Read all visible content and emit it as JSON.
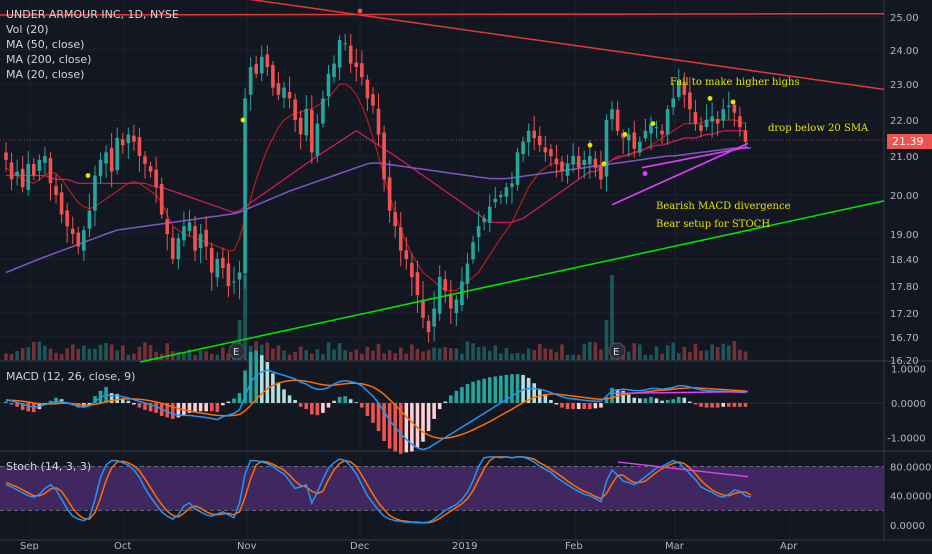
{
  "header": {
    "title": "UNDER ARMOUR INC, 1D, NYSE",
    "indicators": [
      "Vol (20)",
      "MA (50, close)",
      "MA (200, close)",
      "MA (20, close)"
    ]
  },
  "price_badge": "21.39",
  "macd_title": "MACD (12, 26, close, 9)",
  "stoch_title": "Stoch (14, 3, 3)",
  "colors": {
    "background": "#131722",
    "up": "#26a69a",
    "down": "#ef5350",
    "ma50": "#d81b60",
    "ma200": "#7e57c2",
    "ma20": "#b71c1c",
    "resistance": "#e53935",
    "support": "#00e600",
    "divergence": "#e040fb",
    "annotation": "#e6e600",
    "macd_line": "#2196f3",
    "signal_line": "#ff6d00",
    "stoch_band": "#4a2a6a"
  },
  "chart_data": [
    {
      "type": "candlestick",
      "title": "UNDER ARMOUR INC, 1D, NYSE",
      "x_ticks": [
        "Sep",
        "Oct",
        "Nov",
        "Dec",
        "2019",
        "Feb",
        "Mar",
        "Apr"
      ],
      "y_ticks": [
        25.0,
        24.0,
        23.0,
        22.0,
        21.0,
        20.0,
        19.0,
        18.4,
        17.8,
        17.2,
        16.7,
        16.2
      ],
      "y_scale": "log",
      "ylim": [
        16.2,
        25.3
      ],
      "last_price": 21.39,
      "overlays": [
        "Vol (20)",
        "MA (50, close)",
        "MA (200, close)",
        "MA (20, close)"
      ],
      "annotations": [
        "Fail to make higher highs",
        "drop below 20 SMA",
        "Bearish MACD divergence",
        "Bear setup for STOCH"
      ],
      "earnings_markers": [
        "E",
        "E"
      ],
      "closes": [
        20.9,
        20.4,
        20.6,
        20.2,
        20.8,
        20.5,
        20.9,
        21.0,
        20.3,
        20.0,
        19.5,
        19.2,
        19.0,
        18.7,
        19.1,
        19.6,
        20.5,
        20.9,
        21.1,
        20.6,
        21.5,
        21.3,
        21.6,
        21.4,
        21.0,
        20.8,
        20.6,
        20.2,
        19.5,
        19.0,
        18.4,
        18.9,
        19.2,
        19.3,
        18.6,
        19.0,
        18.7,
        18.1,
        18.4,
        18.2,
        17.8,
        17.9,
        18.1,
        22.6,
        23.5,
        23.3,
        23.8,
        23.5,
        22.9,
        22.7,
        22.9,
        22.6,
        22.0,
        21.6,
        22.3,
        21.1,
        21.9,
        22.6,
        23.3,
        23.6,
        24.3,
        24.2,
        23.6,
        23.5,
        23.2,
        22.6,
        22.4,
        21.6,
        20.4,
        19.6,
        19.2,
        18.6,
        18.4,
        18.0,
        17.6,
        17.1,
        16.8,
        17.3,
        18.0,
        17.7,
        17.3,
        17.5,
        17.9,
        18.3,
        18.8,
        19.2,
        19.4,
        19.7,
        19.9,
        20.0,
        20.2,
        20.3,
        21.1,
        21.4,
        21.7,
        21.5,
        21.3,
        21.1,
        21.0,
        20.8,
        20.6,
        20.8,
        21.0,
        20.7,
        20.9,
        21.0,
        20.7,
        20.4,
        22.0,
        22.3,
        21.7,
        21.5,
        21.6,
        21.2,
        21.4,
        21.7,
        21.9,
        21.8,
        21.6,
        22.3,
        22.6,
        23.1,
        22.7,
        22.3,
        21.9,
        21.7,
        22.0,
        22.1,
        21.9,
        22.3,
        22.4,
        22.2,
        21.8,
        21.39
      ],
      "series": [
        {
          "name": "MA (20, close)",
          "values": [
            20.7,
            20.6,
            20.5,
            20.4,
            20.35,
            20.3,
            20.4,
            20.5,
            20.6,
            20.55,
            20.4,
            20.2,
            20.0,
            19.8,
            19.7,
            19.65,
            19.7,
            19.8,
            19.9,
            20.0,
            20.1,
            20.2,
            20.3,
            20.35,
            20.3,
            20.2,
            20.1,
            20.0,
            19.8,
            19.5,
            19.2,
            19.1,
            19.0,
            18.95,
            18.9,
            18.85,
            18.8,
            18.75,
            18.7,
            18.65,
            18.6,
            18.6,
            18.9,
            19.4,
            19.9,
            20.4,
            20.8,
            21.2,
            21.5,
            21.8,
            22.0,
            22.1,
            22.2,
            22.2,
            22.3,
            22.3,
            22.4,
            22.5,
            22.6,
            22.8,
            23.0,
            23.0,
            22.9,
            22.7,
            22.4,
            22.0,
            21.5,
            21.0,
            20.5,
            20.0,
            19.5,
            19.1,
            18.8,
            18.5,
            18.3,
            18.1,
            18.0,
            17.9,
            17.8,
            17.7,
            17.7,
            17.7,
            17.8,
            17.9,
            18.0,
            18.1,
            18.3,
            18.5,
            18.7,
            18.9,
            19.1,
            19.3,
            19.6,
            19.9,
            20.2,
            20.4,
            20.6,
            20.7,
            20.8,
            20.8,
            20.8,
            20.8,
            20.8,
            20.8,
            20.8,
            20.8,
            20.7,
            20.7,
            20.8,
            20.9,
            21.0,
            21.0,
            21.0,
            21.1,
            21.1,
            21.2,
            21.3,
            21.4,
            21.5,
            21.6,
            21.7,
            21.8,
            21.9,
            21.9,
            21.9,
            21.9,
            22.0,
            22.0,
            22.0,
            22.0,
            22.0,
            22.0,
            21.95,
            21.9
          ]
        },
        {
          "name": "MA (50, close)",
          "values": [
            20.5,
            20.5,
            20.5,
            20.5,
            20.5,
            20.5,
            20.5,
            20.5,
            20.45,
            20.4,
            20.4,
            20.4,
            20.35,
            20.3,
            20.3,
            20.3,
            20.3,
            20.3,
            20.3,
            20.3,
            20.3,
            20.3,
            20.3,
            20.3,
            20.3,
            20.3,
            20.25,
            20.2,
            20.2,
            20.15,
            20.1,
            20.05,
            20.0,
            19.95,
            19.9,
            19.85,
            19.8,
            19.75,
            19.7,
            19.65,
            19.6,
            19.55,
            19.6,
            19.7,
            19.8,
            19.9,
            20.0,
            20.1,
            20.2,
            20.3,
            20.4,
            20.5,
            20.6,
            20.7,
            20.8,
            20.9,
            21.0,
            21.1,
            21.2,
            21.3,
            21.4,
            21.5,
            21.6,
            21.7,
            21.6,
            21.5,
            21.4,
            21.3,
            21.2,
            21.1,
            21.0,
            20.9,
            20.8,
            20.7,
            20.6,
            20.5,
            20.4,
            20.3,
            20.2,
            20.1,
            20.0,
            19.9,
            19.8,
            19.7,
            19.6,
            19.5,
            19.4,
            19.3,
            19.3,
            19.3,
            19.3,
            19.3,
            19.35,
            19.4,
            19.5,
            19.6,
            19.7,
            19.8,
            19.9,
            20.0,
            20.1,
            20.2,
            20.3,
            20.4,
            20.5,
            20.6,
            20.6,
            20.7,
            20.8,
            20.9,
            20.95,
            21.0,
            21.05,
            21.1,
            21.15,
            21.2,
            21.25,
            21.3,
            21.3,
            21.35,
            21.4,
            21.45,
            21.5,
            21.5,
            21.5,
            21.55,
            21.6,
            21.6,
            21.65,
            21.7,
            21.7,
            21.7,
            21.7,
            21.7
          ]
        },
        {
          "name": "MA (200, close)",
          "values": [
            18.1,
            18.15,
            18.2,
            18.25,
            18.3,
            18.35,
            18.4,
            18.45,
            18.5,
            18.55,
            18.6,
            18.65,
            18.7,
            18.75,
            18.8,
            18.85,
            18.9,
            18.95,
            19.0,
            19.05,
            19.1,
            19.12,
            19.14,
            19.16,
            19.18,
            19.2,
            19.22,
            19.24,
            19.26,
            19.28,
            19.3,
            19.32,
            19.34,
            19.36,
            19.38,
            19.4,
            19.42,
            19.44,
            19.46,
            19.48,
            19.5,
            19.52,
            19.56,
            19.62,
            19.68,
            19.74,
            19.8,
            19.86,
            19.92,
            19.98,
            20.04,
            20.1,
            20.15,
            20.2,
            20.25,
            20.3,
            20.35,
            20.4,
            20.45,
            20.5,
            20.55,
            20.6,
            20.65,
            20.7,
            20.75,
            20.8,
            20.82,
            20.82,
            20.8,
            20.78,
            20.76,
            20.74,
            20.72,
            20.7,
            20.68,
            20.66,
            20.64,
            20.62,
            20.6,
            20.58,
            20.56,
            20.54,
            20.52,
            20.5,
            20.48,
            20.46,
            20.44,
            20.42,
            20.42,
            20.42,
            20.42,
            20.44,
            20.46,
            20.48,
            20.5,
            20.52,
            20.54,
            20.56,
            20.58,
            20.6,
            20.62,
            20.64,
            20.66,
            20.68,
            20.7,
            20.72,
            20.74,
            20.76,
            20.78,
            20.8,
            20.82,
            20.84,
            20.86,
            20.88,
            20.9,
            20.92,
            20.94,
            20.96,
            20.98,
            21.0,
            21.0,
            21.02,
            21.04,
            21.06,
            21.08,
            21.1,
            21.12,
            21.14,
            21.16,
            21.18,
            21.2,
            21.22,
            21.22,
            21.22,
            21.22
          ]
        }
      ]
    },
    {
      "type": "line",
      "title": "MACD (12, 26, close, 9)",
      "y_ticks": [
        1.0,
        0.0,
        -1.0
      ],
      "ylim": [
        -1.45,
        1.15
      ],
      "macd": [
        0.1,
        0.06,
        0.02,
        -0.04,
        -0.08,
        -0.12,
        -0.1,
        -0.05,
        0.0,
        0.05,
        0.04,
        0.0,
        -0.05,
        -0.1,
        -0.12,
        -0.08,
        0.05,
        0.15,
        0.25,
        0.2,
        0.22,
        0.18,
        0.15,
        0.1,
        0.05,
        0.0,
        -0.05,
        -0.1,
        -0.18,
        -0.25,
        -0.32,
        -0.35,
        -0.36,
        -0.36,
        -0.38,
        -0.4,
        -0.42,
        -0.45,
        -0.48,
        -0.4,
        -0.35,
        -0.3,
        -0.2,
        0.2,
        0.6,
        0.8,
        0.9,
        0.95,
        0.9,
        0.85,
        0.8,
        0.75,
        0.7,
        0.6,
        0.55,
        0.45,
        0.4,
        0.4,
        0.45,
        0.55,
        0.62,
        0.65,
        0.62,
        0.58,
        0.5,
        0.35,
        0.2,
        0.0,
        -0.25,
        -0.5,
        -0.7,
        -0.9,
        -1.05,
        -1.2,
        -1.3,
        -1.35,
        -1.3,
        -1.2,
        -1.1,
        -1.0,
        -0.9,
        -0.8,
        -0.7,
        -0.6,
        -0.5,
        -0.4,
        -0.3,
        -0.2,
        -0.1,
        0.0,
        0.1,
        0.2,
        0.3,
        0.38,
        0.42,
        0.42,
        0.4,
        0.36,
        0.3,
        0.24,
        0.18,
        0.14,
        0.12,
        0.1,
        0.08,
        0.06,
        0.05,
        0.05,
        0.2,
        0.35,
        0.38,
        0.4,
        0.38,
        0.36,
        0.36,
        0.38,
        0.42,
        0.42,
        0.4,
        0.42,
        0.45,
        0.5,
        0.5,
        0.46,
        0.42,
        0.38,
        0.36,
        0.35,
        0.34,
        0.34,
        0.33,
        0.32,
        0.31,
        0.3
      ],
      "signal": [
        0.08,
        0.08,
        0.07,
        0.05,
        0.03,
        0.0,
        -0.02,
        -0.03,
        -0.03,
        -0.02,
        -0.01,
        -0.01,
        -0.02,
        -0.04,
        -0.06,
        -0.06,
        -0.04,
        -0.01,
        0.04,
        0.07,
        0.1,
        0.12,
        0.12,
        0.12,
        0.11,
        0.09,
        0.06,
        0.03,
        -0.01,
        -0.06,
        -0.11,
        -0.16,
        -0.2,
        -0.23,
        -0.26,
        -0.29,
        -0.31,
        -0.34,
        -0.36,
        -0.37,
        -0.37,
        -0.36,
        -0.33,
        -0.23,
        -0.07,
        0.11,
        0.27,
        0.41,
        0.51,
        0.58,
        0.62,
        0.65,
        0.66,
        0.65,
        0.63,
        0.6,
        0.56,
        0.53,
        0.51,
        0.52,
        0.54,
        0.56,
        0.57,
        0.57,
        0.56,
        0.52,
        0.46,
        0.37,
        0.25,
        0.1,
        -0.06,
        -0.23,
        -0.4,
        -0.56,
        -0.71,
        -0.84,
        -0.93,
        -0.99,
        -1.02,
        -1.02,
        -1.0,
        -0.96,
        -0.91,
        -0.85,
        -0.78,
        -0.7,
        -0.62,
        -0.54,
        -0.45,
        -0.36,
        -0.27,
        -0.18,
        -0.08,
        0.01,
        0.09,
        0.16,
        0.21,
        0.24,
        0.26,
        0.26,
        0.24,
        0.22,
        0.2,
        0.18,
        0.16,
        0.14,
        0.12,
        0.11,
        0.12,
        0.15,
        0.2,
        0.24,
        0.27,
        0.29,
        0.3,
        0.32,
        0.34,
        0.36,
        0.37,
        0.38,
        0.4,
        0.42,
        0.43,
        0.44,
        0.44,
        0.43,
        0.42,
        0.41,
        0.4,
        0.39,
        0.38,
        0.37,
        0.36,
        0.35
      ]
    },
    {
      "type": "line",
      "title": "Stoch (14, 3, 3)",
      "y_ticks": [
        80.0,
        40.0,
        0.0
      ],
      "ylim": [
        -4,
        100
      ],
      "band": [
        20,
        80
      ],
      "k": [
        55,
        52,
        48,
        44,
        40,
        38,
        42,
        50,
        55,
        48,
        35,
        22,
        12,
        8,
        6,
        10,
        35,
        65,
        82,
        88,
        88,
        85,
        82,
        75,
        65,
        50,
        38,
        28,
        18,
        12,
        8,
        14,
        26,
        30,
        22,
        18,
        14,
        12,
        15,
        18,
        14,
        10,
        30,
        70,
        88,
        88,
        86,
        84,
        80,
        74,
        70,
        60,
        50,
        52,
        55,
        30,
        45,
        62,
        78,
        85,
        90,
        88,
        80,
        70,
        55,
        40,
        30,
        20,
        12,
        8,
        6,
        5,
        4,
        4,
        3,
        3,
        4,
        8,
        14,
        20,
        24,
        28,
        35,
        45,
        60,
        80,
        92,
        93,
        93,
        92,
        93,
        92,
        93,
        93,
        90,
        86,
        80,
        76,
        72,
        65,
        60,
        55,
        50,
        46,
        42,
        40,
        36,
        32,
        60,
        75,
        68,
        60,
        58,
        55,
        60,
        66,
        72,
        78,
        80,
        84,
        88,
        85,
        78,
        70,
        62,
        52,
        48,
        45,
        40,
        38,
        42,
        48,
        46,
        40,
        38
      ],
      "d": [
        58,
        55,
        52,
        48,
        44,
        40,
        40,
        43,
        49,
        51,
        46,
        35,
        23,
        14,
        9,
        8,
        17,
        37,
        61,
        78,
        86,
        87,
        85,
        81,
        74,
        63,
        51,
        39,
        28,
        19,
        13,
        11,
        16,
        23,
        26,
        23,
        18,
        15,
        14,
        15,
        16,
        14,
        18,
        38,
        63,
        82,
        87,
        86,
        83,
        79,
        75,
        68,
        60,
        54,
        52,
        46,
        43,
        46,
        62,
        75,
        84,
        88,
        86,
        80,
        68,
        55,
        42,
        30,
        21,
        13,
        9,
        6,
        5,
        4,
        4,
        3,
        3,
        5,
        9,
        14,
        19,
        24,
        29,
        36,
        47,
        62,
        77,
        88,
        93,
        93,
        93,
        92,
        93,
        93,
        92,
        90,
        85,
        81,
        76,
        71,
        66,
        60,
        55,
        50,
        46,
        43,
        39,
        36,
        43,
        56,
        68,
        68,
        62,
        58,
        58,
        60,
        66,
        72,
        77,
        81,
        84,
        86,
        84,
        78,
        70,
        61,
        54,
        48,
        44,
        41,
        40,
        43,
        45,
        45,
        41
      ]
    }
  ]
}
